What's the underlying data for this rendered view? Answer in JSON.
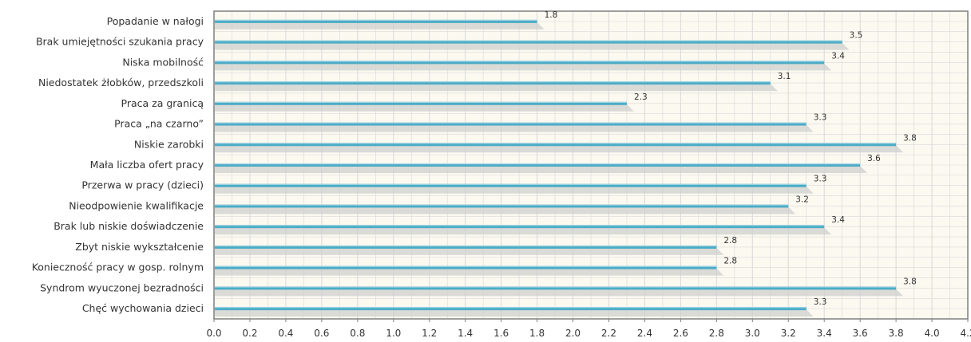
{
  "chart_data": {
    "type": "bar",
    "orientation": "horizontal",
    "title": "",
    "xlabel": "",
    "ylabel": "",
    "categories": [
      "Popadanie w nałogi",
      "Brak umiejętności szukania pracy",
      "Niska mobilność",
      "Niedostatek żłobków, przedszkoli",
      "Praca za granicą",
      "Praca „na czarno”",
      "Niskie zarobki",
      "Mała liczba ofert pracy",
      "Przerwa w pracy (dzieci)",
      "Nieodpowienie kwalifikacje",
      "Brak lub niskie doświadczenie",
      "Zbyt niskie wykształcenie",
      "Konieczność pracy w gosp. rolnym",
      "Syndrom wyuczonej bezradności",
      "Chęć wychowania dzieci"
    ],
    "values": [
      1.8,
      3.5,
      3.4,
      3.1,
      2.3,
      3.3,
      3.8,
      3.6,
      3.3,
      3.2,
      3.4,
      2.8,
      2.8,
      3.8,
      3.3
    ],
    "value_labels": [
      "1.8",
      "3.5",
      "3.4",
      "3.1",
      "2.3",
      "3.3",
      "3.8",
      "3.6",
      "3.3",
      "3.2",
      "3.4",
      "2.8",
      "2.8",
      "3.8",
      "3.3"
    ],
    "xlim": [
      0,
      4.2
    ],
    "xticks": [
      "0.0",
      "0.2",
      "0.4",
      "0.6",
      "0.8",
      "1.0",
      "1.2",
      "1.4",
      "1.6",
      "1.8",
      "2.0",
      "2.2",
      "2.4",
      "2.6",
      "2.8",
      "3.0",
      "3.2",
      "3.4",
      "3.6",
      "3.8",
      "4.0",
      "4.2"
    ],
    "grid": true,
    "legend": "none",
    "colors": {
      "bar": "#4bacc6",
      "bar_highlight": "#9fd3e2",
      "shadow": "#cfcfcf",
      "plot_bg": "#fbf9f0",
      "grid": "#d9d9d9",
      "axis": "#7f7f7f"
    }
  }
}
